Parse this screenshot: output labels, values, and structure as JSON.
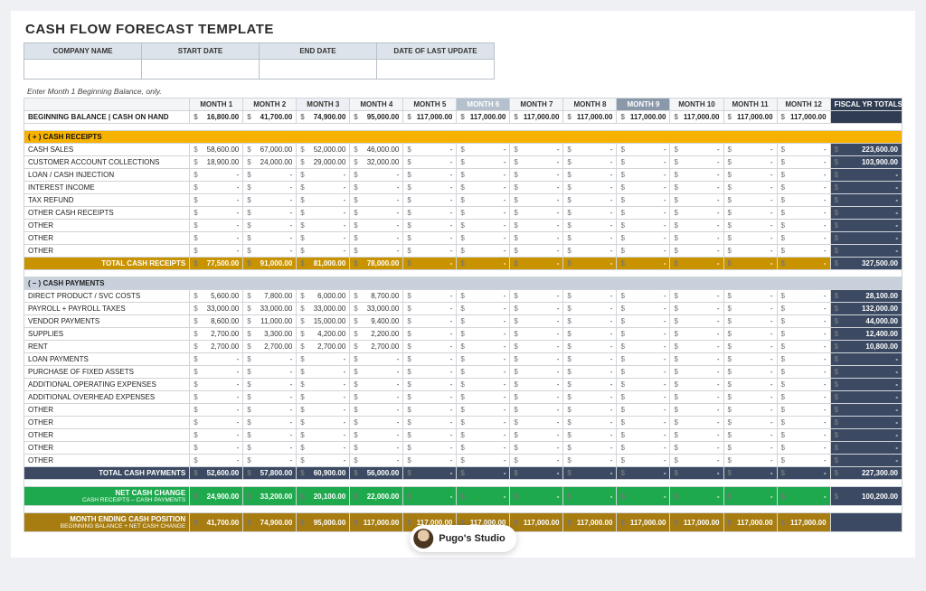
{
  "title": "CASH FLOW FORECAST TEMPLATE",
  "meta_headers": [
    "COMPANY NAME",
    "START DATE",
    "END DATE",
    "DATE OF LAST UPDATE"
  ],
  "instruction": "Enter Month 1 Beginning Balance, only.",
  "months": [
    "MONTH 1",
    "MONTH 2",
    "MONTH 3",
    "MONTH 4",
    "MONTH 5",
    "MONTH 6",
    "MONTH 7",
    "MONTH 8",
    "MONTH 9",
    "MONTH 10",
    "MONTH 11",
    "MONTH 12"
  ],
  "totals_label": "FISCAL YR TOTALS",
  "beginning_balance_label": "BEGINNING BALANCE  |  CASH ON HAND",
  "beginning_balance": [
    "16,800.00",
    "41,700.00",
    "74,900.00",
    "95,000.00",
    "117,000.00",
    "117,000.00",
    "117,000.00",
    "117,000.00",
    "117,000.00",
    "117,000.00",
    "117,000.00",
    "117,000.00"
  ],
  "receipts": {
    "header": "( + )   CASH RECEIPTS",
    "rows": [
      {
        "label": "CASH SALES",
        "vals": [
          "58,600.00",
          "67,000.00",
          "52,000.00",
          "46,000.00",
          "-",
          "-",
          "-",
          "-",
          "-",
          "-",
          "-",
          "-"
        ],
        "total": "223,600.00"
      },
      {
        "label": "CUSTOMER ACCOUNT COLLECTIONS",
        "vals": [
          "18,900.00",
          "24,000.00",
          "29,000.00",
          "32,000.00",
          "-",
          "-",
          "-",
          "-",
          "-",
          "-",
          "-",
          "-"
        ],
        "total": "103,900.00"
      },
      {
        "label": "LOAN / CASH INJECTION",
        "vals": [
          "-",
          "-",
          "-",
          "-",
          "-",
          "-",
          "-",
          "-",
          "-",
          "-",
          "-",
          "-"
        ],
        "total": "-"
      },
      {
        "label": "INTEREST INCOME",
        "vals": [
          "-",
          "-",
          "-",
          "-",
          "-",
          "-",
          "-",
          "-",
          "-",
          "-",
          "-",
          "-"
        ],
        "total": "-"
      },
      {
        "label": "TAX REFUND",
        "vals": [
          "-",
          "-",
          "-",
          "-",
          "-",
          "-",
          "-",
          "-",
          "-",
          "-",
          "-",
          "-"
        ],
        "total": "-"
      },
      {
        "label": "OTHER CASH RECEIPTS",
        "vals": [
          "-",
          "-",
          "-",
          "-",
          "-",
          "-",
          "-",
          "-",
          "-",
          "-",
          "-",
          "-"
        ],
        "total": "-"
      },
      {
        "label": "OTHER",
        "vals": [
          "-",
          "-",
          "-",
          "-",
          "-",
          "-",
          "-",
          "-",
          "-",
          "-",
          "-",
          "-"
        ],
        "total": "-"
      },
      {
        "label": "OTHER",
        "vals": [
          "-",
          "-",
          "-",
          "-",
          "-",
          "-",
          "-",
          "-",
          "-",
          "-",
          "-",
          "-"
        ],
        "total": "-"
      },
      {
        "label": "OTHER",
        "vals": [
          "-",
          "-",
          "-",
          "-",
          "-",
          "-",
          "-",
          "-",
          "-",
          "-",
          "-",
          "-"
        ],
        "total": "-"
      }
    ],
    "subtotal_label": "TOTAL CASH RECEIPTS",
    "subtotal": [
      "77,500.00",
      "91,000.00",
      "81,000.00",
      "78,000.00",
      "-",
      "-",
      "-",
      "-",
      "-",
      "-",
      "-",
      "-"
    ],
    "subtotal_total": "327,500.00"
  },
  "payments": {
    "header": "( – )   CASH PAYMENTS",
    "rows": [
      {
        "label": "DIRECT PRODUCT / SVC COSTS",
        "vals": [
          "5,600.00",
          "7,800.00",
          "6,000.00",
          "8,700.00",
          "-",
          "-",
          "-",
          "-",
          "-",
          "-",
          "-",
          "-"
        ],
        "total": "28,100.00"
      },
      {
        "label": "PAYROLL + PAYROLL TAXES",
        "vals": [
          "33,000.00",
          "33,000.00",
          "33,000.00",
          "33,000.00",
          "-",
          "-",
          "-",
          "-",
          "-",
          "-",
          "-",
          "-"
        ],
        "total": "132,000.00"
      },
      {
        "label": "VENDOR PAYMENTS",
        "vals": [
          "8,600.00",
          "11,000.00",
          "15,000.00",
          "9,400.00",
          "-",
          "-",
          "-",
          "-",
          "-",
          "-",
          "-",
          "-"
        ],
        "total": "44,000.00"
      },
      {
        "label": "SUPPLIES",
        "vals": [
          "2,700.00",
          "3,300.00",
          "4,200.00",
          "2,200.00",
          "-",
          "-",
          "-",
          "-",
          "-",
          "-",
          "-",
          "-"
        ],
        "total": "12,400.00"
      },
      {
        "label": "RENT",
        "vals": [
          "2,700.00",
          "2,700.00",
          "2,700.00",
          "2,700.00",
          "-",
          "-",
          "-",
          "-",
          "-",
          "-",
          "-",
          "-"
        ],
        "total": "10,800.00"
      },
      {
        "label": "LOAN PAYMENTS",
        "vals": [
          "-",
          "-",
          "-",
          "-",
          "-",
          "-",
          "-",
          "-",
          "-",
          "-",
          "-",
          "-"
        ],
        "total": "-"
      },
      {
        "label": "PURCHASE OF FIXED ASSETS",
        "vals": [
          "-",
          "-",
          "-",
          "-",
          "-",
          "-",
          "-",
          "-",
          "-",
          "-",
          "-",
          "-"
        ],
        "total": "-"
      },
      {
        "label": "ADDITIONAL OPERATING EXPENSES",
        "vals": [
          "-",
          "-",
          "-",
          "-",
          "-",
          "-",
          "-",
          "-",
          "-",
          "-",
          "-",
          "-"
        ],
        "total": "-"
      },
      {
        "label": "ADDITIONAL OVERHEAD EXPENSES",
        "vals": [
          "-",
          "-",
          "-",
          "-",
          "-",
          "-",
          "-",
          "-",
          "-",
          "-",
          "-",
          "-"
        ],
        "total": "-"
      },
      {
        "label": "OTHER",
        "vals": [
          "-",
          "-",
          "-",
          "-",
          "-",
          "-",
          "-",
          "-",
          "-",
          "-",
          "-",
          "-"
        ],
        "total": "-"
      },
      {
        "label": "OTHER",
        "vals": [
          "-",
          "-",
          "-",
          "-",
          "-",
          "-",
          "-",
          "-",
          "-",
          "-",
          "-",
          "-"
        ],
        "total": "-"
      },
      {
        "label": "OTHER",
        "vals": [
          "-",
          "-",
          "-",
          "-",
          "-",
          "-",
          "-",
          "-",
          "-",
          "-",
          "-",
          "-"
        ],
        "total": "-"
      },
      {
        "label": "OTHER",
        "vals": [
          "-",
          "-",
          "-",
          "-",
          "-",
          "-",
          "-",
          "-",
          "-",
          "-",
          "-",
          "-"
        ],
        "total": "-"
      },
      {
        "label": "OTHER",
        "vals": [
          "-",
          "-",
          "-",
          "-",
          "-",
          "-",
          "-",
          "-",
          "-",
          "-",
          "-",
          "-"
        ],
        "total": "-"
      }
    ],
    "subtotal_label": "TOTAL CASH PAYMENTS",
    "subtotal": [
      "52,600.00",
      "57,800.00",
      "60,900.00",
      "56,000.00",
      "-",
      "-",
      "-",
      "-",
      "-",
      "-",
      "-",
      "-"
    ],
    "subtotal_total": "227,300.00"
  },
  "net_change": {
    "label": "NET CASH CHANGE",
    "sub": "CASH RECEIPTS – CASH PAYMENTS",
    "vals": [
      "24,900.00",
      "33,200.00",
      "20,100.00",
      "22,000.00",
      "-",
      "-",
      "-",
      "-",
      "-",
      "-",
      "-",
      "-"
    ],
    "total": "100,200.00"
  },
  "ending": {
    "label": "MONTH ENDING CASH POSITION",
    "sub": "BEGINNING BALANCE + NET CASH CHANGE",
    "vals": [
      "41,700.00",
      "74,900.00",
      "95,000.00",
      "117,000.00",
      "117,000.00",
      "117,000.00",
      "117,000.00",
      "117,000.00",
      "117,000.00",
      "117,000.00",
      "117,000.00",
      "117,000.00"
    ],
    "total": ""
  },
  "watermark": "Pugo's Studio",
  "colors": {
    "receipts_header": "#f7b200",
    "receipts_subtotal": "#c99300",
    "payments_header": "#c7d0db",
    "payments_subtotal": "#3b4a62",
    "net_change": "#1ea94d",
    "ending": "#a77c10",
    "totals_col": "#2f3c52"
  }
}
